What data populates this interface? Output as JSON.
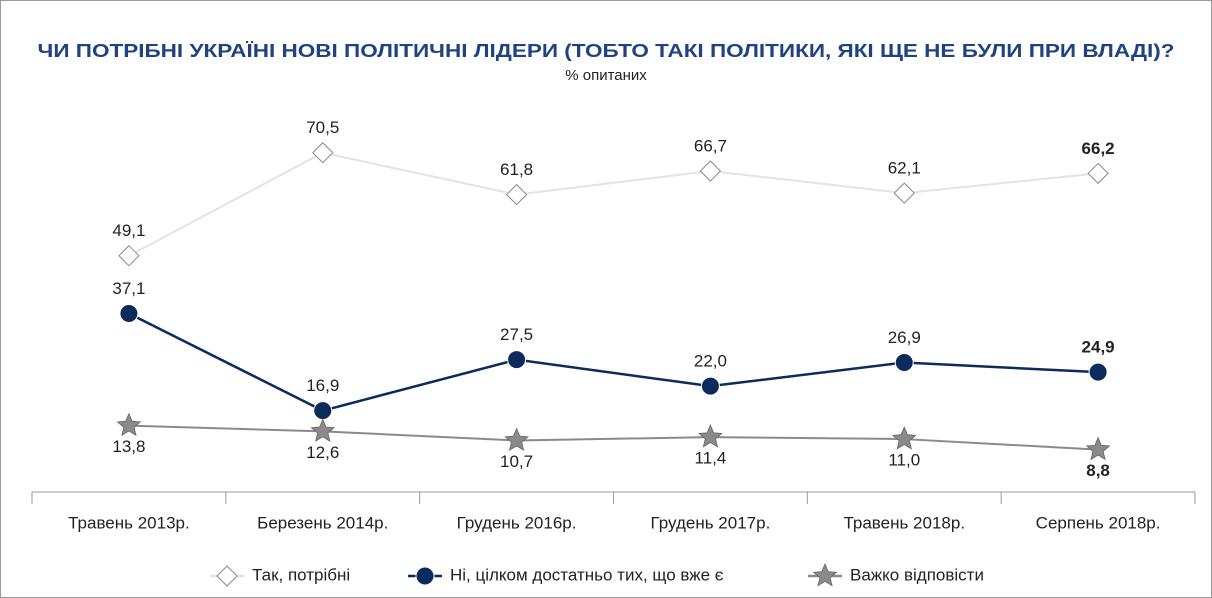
{
  "chart_data": {
    "type": "line",
    "title": "ЧИ ПОТРІБНІ УКРАЇНІ НОВІ ПОЛІТИЧНІ ЛІДЕРИ (ТОБТО ТАКІ ПОЛІТИКИ, ЯКІ ЩЕ НЕ БУЛИ ПРИ ВЛАДІ)?",
    "subtitle": "% опитаних",
    "categories": [
      "Травень 2013р.",
      "Березень 2014р.",
      "Грудень 2016р.",
      "Грудень 2017р.",
      "Травень 2018р.",
      "Серпень 2018р."
    ],
    "ylim": [
      0,
      80
    ],
    "series": [
      {
        "name": "Так, потрібні",
        "color": "#e3e3e3",
        "marker": "diamond",
        "values": [
          49.1,
          70.5,
          61.8,
          66.7,
          62.1,
          66.2
        ],
        "value_labels": [
          "49,1",
          "70,5",
          "61,8",
          "66,7",
          "62,1",
          "66,2"
        ]
      },
      {
        "name": "Ні, цілком достатньо тих, що вже є",
        "color": "#0d2a5c",
        "marker": "circle",
        "values": [
          37.1,
          16.9,
          27.5,
          22.0,
          26.9,
          24.9
        ],
        "value_labels": [
          "37,1",
          "16,9",
          "27,5",
          "22,0",
          "26,9",
          "24,9"
        ]
      },
      {
        "name": "Важко відповісти",
        "color": "#8a8a8a",
        "marker": "star",
        "values": [
          13.8,
          12.6,
          10.7,
          11.4,
          11.0,
          8.8
        ],
        "value_labels": [
          "13,8",
          "12,6",
          "10,7",
          "11,4",
          "11,0",
          "8,8"
        ]
      }
    ]
  }
}
